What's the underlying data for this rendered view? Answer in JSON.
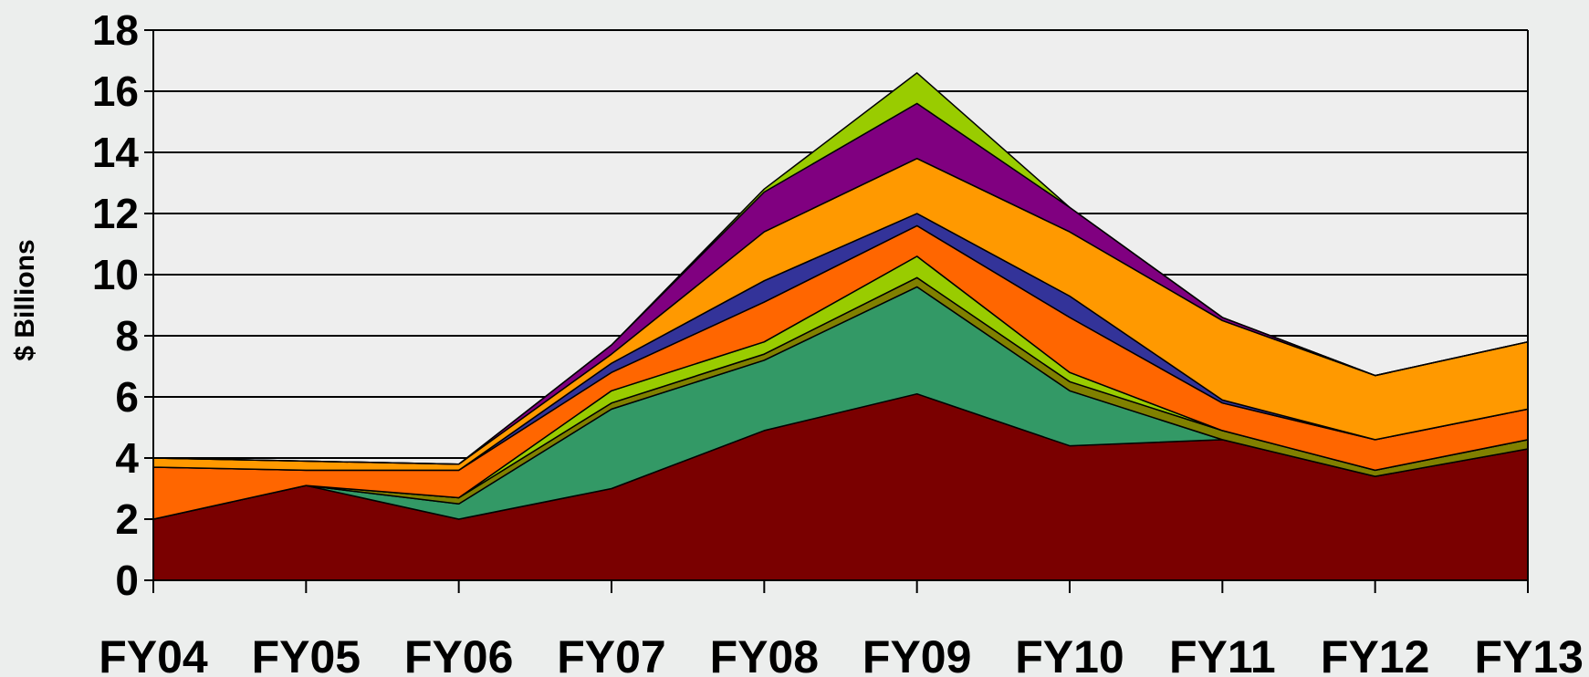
{
  "chart_data": {
    "type": "area",
    "stacked": true,
    "title": "",
    "xlabel": "",
    "ylabel": "$ Billions",
    "categories": [
      "FY04",
      "FY05",
      "FY06",
      "FY07",
      "FY08",
      "FY09",
      "FY10",
      "FY11",
      "FY12",
      "FY13"
    ],
    "ylim": [
      0,
      18
    ],
    "yticks": [
      "0",
      "2",
      "4",
      "6",
      "8",
      "10",
      "12",
      "14",
      "16",
      "18"
    ],
    "grid": true,
    "legend": "none",
    "series": [
      {
        "color": "#7a0000",
        "values": [
          2.0,
          3.1,
          2.0,
          3.0,
          4.9,
          6.1,
          4.4,
          4.6,
          3.4,
          4.3
        ]
      },
      {
        "color": "#339966",
        "values": [
          0.0,
          0.0,
          0.5,
          2.6,
          2.3,
          3.5,
          1.8,
          0.0,
          0.0,
          0.0
        ]
      },
      {
        "color": "#808000",
        "values": [
          0.0,
          0.0,
          0.2,
          0.2,
          0.2,
          0.3,
          0.3,
          0.3,
          0.2,
          0.3
        ]
      },
      {
        "color": "#99cc00",
        "values": [
          0.0,
          0.0,
          0.0,
          0.4,
          0.4,
          0.7,
          0.3,
          0.0,
          0.0,
          0.0
        ]
      },
      {
        "color": "#ff6600",
        "values": [
          1.7,
          0.5,
          0.9,
          0.6,
          1.3,
          1.0,
          1.8,
          0.9,
          1.0,
          1.0
        ]
      },
      {
        "color": "#333399",
        "values": [
          0.0,
          0.0,
          0.0,
          0.3,
          0.7,
          0.4,
          0.7,
          0.1,
          0.0,
          0.0
        ]
      },
      {
        "color": "#ff9900",
        "values": [
          0.3,
          0.3,
          0.2,
          0.3,
          1.6,
          1.8,
          2.1,
          2.6,
          2.1,
          2.2
        ]
      },
      {
        "color": "#800080",
        "values": [
          0.0,
          0.0,
          0.0,
          0.3,
          1.3,
          1.8,
          0.8,
          0.1,
          0.0,
          0.0
        ]
      },
      {
        "color": "#99cc00",
        "values": [
          0.0,
          0.0,
          0.0,
          0.0,
          0.1,
          1.0,
          0.0,
          0.0,
          0.0,
          0.0
        ]
      }
    ]
  }
}
